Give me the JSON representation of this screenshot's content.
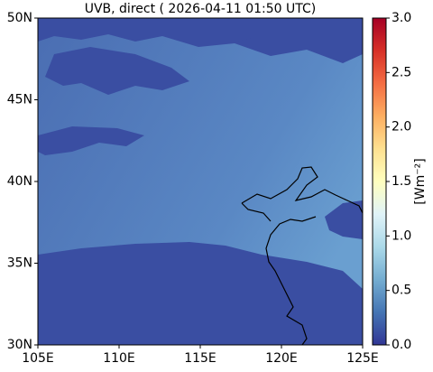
{
  "chart_data": {
    "type": "map",
    "title": "UVB, direct ( 2026-04-11 01:50 UTC)",
    "xlim": [
      105,
      125
    ],
    "xticks": [
      {
        "value": 105,
        "label": "105E"
      },
      {
        "value": 110,
        "label": "110E"
      },
      {
        "value": 115,
        "label": "115E"
      },
      {
        "value": 120,
        "label": "120E"
      },
      {
        "value": 125,
        "label": "125E"
      }
    ],
    "ylim": [
      30,
      50
    ],
    "yticks": [
      {
        "value": 30,
        "label": "30N"
      },
      {
        "value": 35,
        "label": "35N"
      },
      {
        "value": 40,
        "label": "40N"
      },
      {
        "value": 45,
        "label": "45N"
      },
      {
        "value": 50,
        "label": "50N"
      }
    ],
    "colorbar": {
      "label": "[Wm⁻²]",
      "clim": [
        0,
        3
      ],
      "ticks": [
        {
          "value": 0,
          "label": "0.0"
        },
        0.5,
        {
          "value": 1,
          "label": "1.0"
        },
        1.5,
        {
          "value": 2,
          "label": "2.0"
        },
        2.5,
        {
          "value": 3,
          "label": "3.0"
        }
      ],
      "colormap": [
        "#313695",
        "#4575b4",
        "#74add1",
        "#abd9e9",
        "#e0f3f8",
        "#ffffbf",
        "#fee090",
        "#fdae61",
        "#f46d43",
        "#d73027",
        "#a50026"
      ]
    }
  }
}
